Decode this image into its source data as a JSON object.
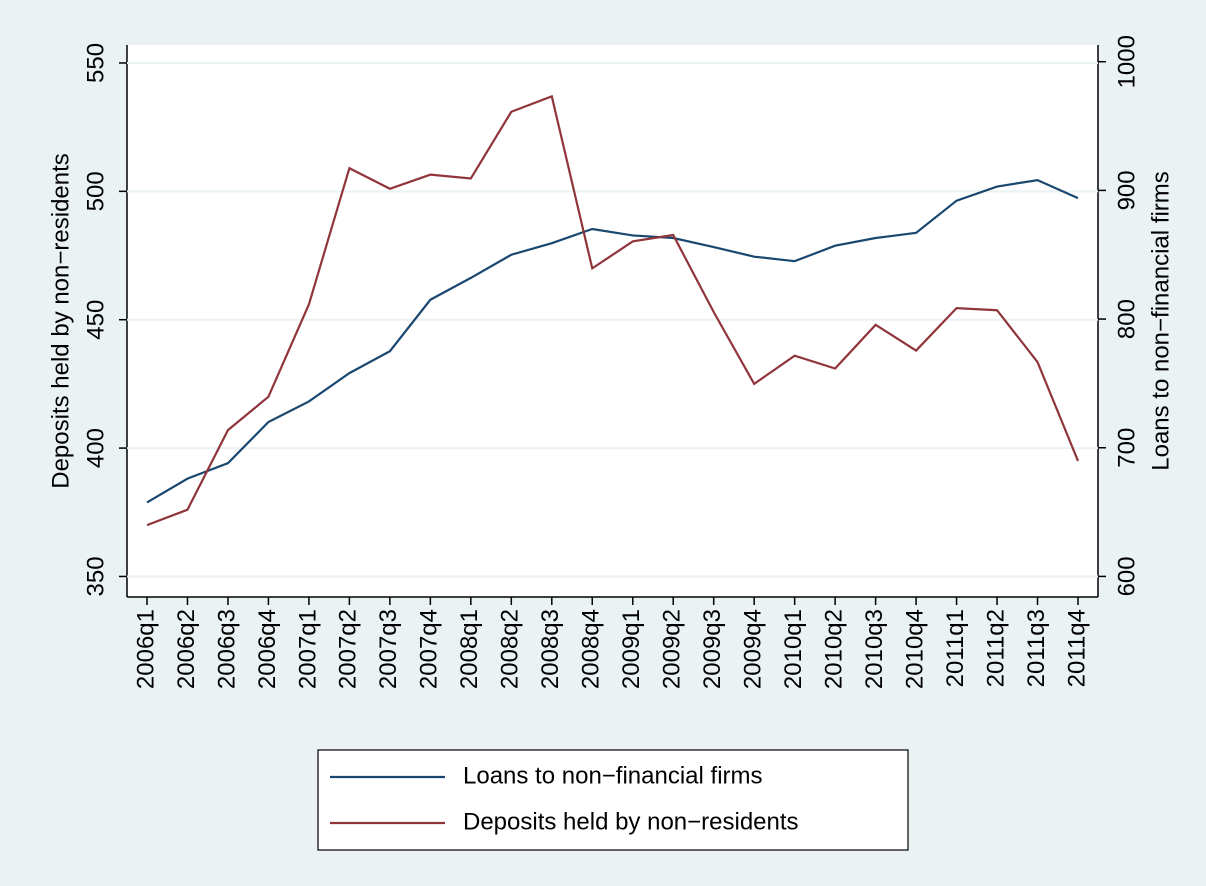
{
  "chart_data": {
    "type": "line",
    "categories": [
      "2006q1",
      "2006q2",
      "2006q3",
      "2006q4",
      "2007q1",
      "2007q2",
      "2007q3",
      "2007q4",
      "2008q1",
      "2008q2",
      "2008q3",
      "2008q4",
      "2009q1",
      "2009q2",
      "2009q3",
      "2009q4",
      "2010q1",
      "2010q2",
      "2010q3",
      "2010q4",
      "2011q1",
      "2011q2",
      "2011q3",
      "2011q4"
    ],
    "series": [
      {
        "name": "Loans to non−financial firms",
        "color": "#1a476f",
        "axis": "y2",
        "values": [
          657.5,
          676,
          688,
          720,
          736,
          758,
          775,
          815,
          832,
          850,
          859,
          870,
          865,
          863,
          856,
          848.5,
          845,
          857,
          863,
          867,
          892,
          903,
          908,
          894
        ]
      },
      {
        "name": "Deposits held by non−residents",
        "color": "#90353b",
        "values": [
          370,
          376,
          407,
          420,
          456,
          509,
          501,
          506.5,
          505,
          531,
          537,
          470,
          480.5,
          483,
          453,
          425,
          436,
          431,
          448,
          438,
          454.5,
          453.7,
          433.5,
          395
        ]
      }
    ],
    "y_label": "Deposits held by non−residents",
    "y2_label": "Loans to non−financial firms",
    "ylim": [
      342,
      557
    ],
    "yticks": [
      350,
      400,
      450,
      500,
      550
    ],
    "y2lim": [
      584,
      1013
    ],
    "y2ticks": [
      600,
      700,
      800,
      900,
      1000
    ],
    "grid": true,
    "legend": "bottom"
  }
}
